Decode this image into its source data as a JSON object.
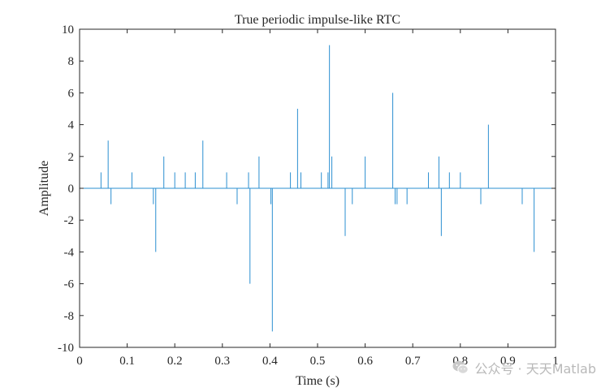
{
  "chart_data": {
    "type": "line",
    "title": "True periodic impulse-like RTC",
    "xlabel": "Time (s)",
    "ylabel": "Amplitude",
    "xlim": [
      0,
      1
    ],
    "ylim": [
      -10,
      10
    ],
    "xticks": [
      0,
      0.1,
      0.2,
      0.3,
      0.4,
      0.5,
      0.6,
      0.7,
      0.8,
      0.9,
      1
    ],
    "xtick_labels": [
      "0",
      "0.1",
      "0.2",
      "0.3",
      "0.4",
      "0.5",
      "0.6",
      "0.7",
      "0.8",
      "0.9",
      "1"
    ],
    "yticks": [
      -10,
      -8,
      -6,
      -4,
      -2,
      0,
      2,
      4,
      6,
      8,
      10
    ],
    "ytick_labels": [
      "-10",
      "-8",
      "-6",
      "-4",
      "-2",
      "0",
      "2",
      "4",
      "6",
      "8",
      "10"
    ],
    "grid": false,
    "line_color": "#2b8fd1",
    "series": [
      {
        "x": [
          0.045,
          0.06,
          0.066,
          0.11,
          0.155,
          0.16,
          0.177,
          0.2,
          0.222,
          0.243,
          0.259,
          0.309,
          0.331,
          0.355,
          0.358,
          0.377,
          0.402,
          0.405,
          0.443,
          0.458,
          0.465,
          0.508,
          0.522,
          0.525,
          0.53,
          0.558,
          0.573,
          0.6,
          0.658,
          0.663,
          0.667,
          0.688,
          0.733,
          0.755,
          0.76,
          0.777,
          0.8,
          0.843,
          0.859,
          0.93,
          0.955
        ],
        "y": [
          1,
          3,
          -1,
          1,
          -1,
          -4,
          2,
          1,
          1,
          1,
          3,
          1,
          -1,
          1,
          -6,
          2,
          -1,
          -9,
          1,
          5,
          1,
          1,
          1,
          9,
          2,
          -3,
          -1,
          2,
          6,
          -1,
          -1,
          -1,
          1,
          2,
          -3,
          1,
          1,
          -1,
          4,
          -1,
          -4
        ]
      }
    ]
  },
  "watermark": {
    "text": "公众号 · 天天Matlab",
    "icon": "wechat-icon"
  }
}
